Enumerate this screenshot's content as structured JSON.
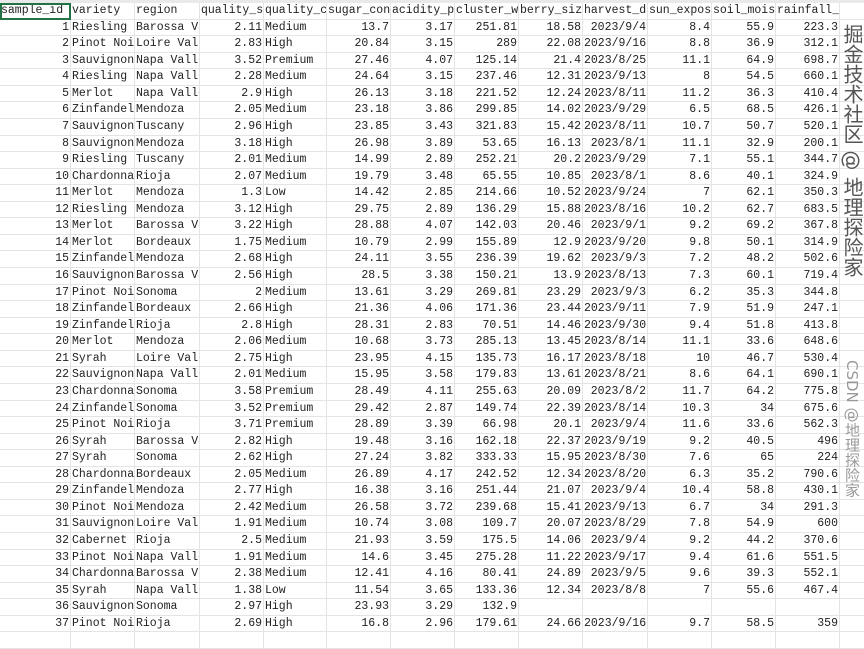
{
  "table": {
    "columns": [
      "sample_id",
      "variety",
      "region",
      "quality_score",
      "quality_category",
      "sugar_content",
      "acidity_ph",
      "cluster_weight",
      "berry_size",
      "harvest_date",
      "sun_exposure",
      "soil_moisture",
      "rainfall_mm"
    ],
    "selected_cell": "A1",
    "rows": [
      [
        "1",
        "Riesling",
        "Barossa Valley",
        "2.11",
        "Medium",
        "13.7",
        "3.17",
        "251.81",
        "18.58",
        "2023/9/4",
        "8.4",
        "55.9",
        "223.3"
      ],
      [
        "2",
        "Pinot Noir",
        "Loire Valley",
        "2.83",
        "High",
        "20.84",
        "3.15",
        "289",
        "22.08",
        "2023/9/16",
        "8.8",
        "36.9",
        "312.1"
      ],
      [
        "3",
        "Sauvignon",
        "Napa Valley",
        "3.52",
        "Premium",
        "27.46",
        "4.07",
        "125.14",
        "21.4",
        "2023/8/25",
        "11.1",
        "64.9",
        "698.7"
      ],
      [
        "4",
        "Riesling",
        "Napa Valley",
        "2.28",
        "Medium",
        "24.64",
        "3.15",
        "237.46",
        "12.31",
        "2023/9/13",
        "8",
        "54.5",
        "660.1"
      ],
      [
        "5",
        "Merlot",
        "Napa Valley",
        "2.9",
        "High",
        "26.13",
        "3.18",
        "221.52",
        "12.24",
        "2023/8/11",
        "11.2",
        "36.3",
        "410.4"
      ],
      [
        "6",
        "Zinfandel",
        "Mendoza",
        "2.05",
        "Medium",
        "23.18",
        "3.86",
        "299.85",
        "14.02",
        "2023/9/29",
        "6.5",
        "68.5",
        "426.1"
      ],
      [
        "7",
        "Sauvignon",
        "Tuscany",
        "2.96",
        "High",
        "23.85",
        "3.43",
        "321.83",
        "15.42",
        "2023/8/11",
        "10.7",
        "50.7",
        "520.1"
      ],
      [
        "8",
        "Sauvignon",
        "Mendoza",
        "3.18",
        "High",
        "26.98",
        "3.89",
        "53.65",
        "16.13",
        "2023/8/1",
        "11.1",
        "32.9",
        "200.1"
      ],
      [
        "9",
        "Riesling",
        "Tuscany",
        "2.01",
        "Medium",
        "14.99",
        "2.89",
        "252.21",
        "20.2",
        "2023/9/29",
        "7.1",
        "55.1",
        "344.7"
      ],
      [
        "10",
        "Chardonnay",
        "Rioja",
        "2.07",
        "Medium",
        "19.79",
        "3.48",
        "65.55",
        "10.85",
        "2023/8/1",
        "8.6",
        "40.1",
        "324.9"
      ],
      [
        "11",
        "Merlot",
        "Mendoza",
        "1.3",
        "Low",
        "14.42",
        "2.85",
        "214.66",
        "10.52",
        "2023/9/24",
        "7",
        "62.1",
        "350.3"
      ],
      [
        "12",
        "Riesling",
        "Mendoza",
        "3.12",
        "High",
        "29.75",
        "2.89",
        "136.29",
        "15.88",
        "2023/8/16",
        "10.2",
        "62.7",
        "683.5"
      ],
      [
        "13",
        "Merlot",
        "Barossa Valley",
        "3.22",
        "High",
        "28.88",
        "4.07",
        "142.03",
        "20.46",
        "2023/9/1",
        "9.2",
        "69.2",
        "367.8"
      ],
      [
        "14",
        "Merlot",
        "Bordeaux",
        "1.75",
        "Medium",
        "10.79",
        "2.99",
        "155.89",
        "12.9",
        "2023/9/20",
        "9.8",
        "50.1",
        "314.9"
      ],
      [
        "15",
        "Zinfandel",
        "Mendoza",
        "2.68",
        "High",
        "24.11",
        "3.55",
        "236.39",
        "19.62",
        "2023/9/3",
        "7.2",
        "48.2",
        "502.6"
      ],
      [
        "16",
        "Sauvignon",
        "Barossa Valley",
        "2.56",
        "High",
        "28.5",
        "3.38",
        "150.21",
        "13.9",
        "2023/8/13",
        "7.3",
        "60.1",
        "719.4"
      ],
      [
        "17",
        "Pinot Noir",
        "Sonoma",
        "2",
        "Medium",
        "13.61",
        "3.29",
        "269.81",
        "23.29",
        "2023/9/3",
        "6.2",
        "35.3",
        "344.8"
      ],
      [
        "18",
        "Zinfandel",
        "Bordeaux",
        "2.66",
        "High",
        "21.36",
        "4.06",
        "171.36",
        "23.44",
        "2023/9/11",
        "7.9",
        "51.9",
        "247.1"
      ],
      [
        "19",
        "Zinfandel",
        "Rioja",
        "2.8",
        "High",
        "28.31",
        "2.83",
        "70.51",
        "14.46",
        "2023/9/30",
        "9.4",
        "51.8",
        "413.8"
      ],
      [
        "20",
        "Merlot",
        "Mendoza",
        "2.06",
        "Medium",
        "10.68",
        "3.73",
        "285.13",
        "13.45",
        "2023/8/14",
        "11.1",
        "33.6",
        "648.6"
      ],
      [
        "21",
        "Syrah",
        "Loire Valley",
        "2.75",
        "High",
        "23.95",
        "4.15",
        "135.73",
        "16.17",
        "2023/8/18",
        "10",
        "46.7",
        "530.4"
      ],
      [
        "22",
        "Sauvignon",
        "Napa Valley",
        "2.01",
        "Medium",
        "15.95",
        "3.58",
        "179.83",
        "13.61",
        "2023/8/21",
        "8.6",
        "64.1",
        "690.1"
      ],
      [
        "23",
        "Chardonnay",
        "Sonoma",
        "3.58",
        "Premium",
        "28.49",
        "4.11",
        "255.63",
        "20.09",
        "2023/8/2",
        "11.7",
        "64.2",
        "775.8"
      ],
      [
        "24",
        "Zinfandel",
        "Sonoma",
        "3.52",
        "Premium",
        "29.42",
        "2.87",
        "149.74",
        "22.39",
        "2023/8/14",
        "10.3",
        "34",
        "675.6"
      ],
      [
        "25",
        "Pinot Noir",
        "Rioja",
        "3.71",
        "Premium",
        "28.89",
        "3.39",
        "66.98",
        "20.1",
        "2023/9/4",
        "11.6",
        "33.6",
        "562.3"
      ],
      [
        "26",
        "Syrah",
        "Barossa Valley",
        "2.82",
        "High",
        "19.48",
        "3.16",
        "162.18",
        "22.37",
        "2023/9/19",
        "9.2",
        "40.5",
        "496"
      ],
      [
        "27",
        "Syrah",
        "Sonoma",
        "2.62",
        "High",
        "27.24",
        "3.82",
        "333.33",
        "15.95",
        "2023/8/30",
        "7.6",
        "65",
        "224"
      ],
      [
        "28",
        "Chardonnay",
        "Bordeaux",
        "2.05",
        "Medium",
        "26.89",
        "4.17",
        "242.52",
        "12.34",
        "2023/8/20",
        "6.3",
        "35.2",
        "790.6"
      ],
      [
        "29",
        "Zinfandel",
        "Mendoza",
        "2.77",
        "High",
        "16.38",
        "3.16",
        "251.44",
        "21.07",
        "2023/9/4",
        "10.4",
        "58.8",
        "430.1"
      ],
      [
        "30",
        "Pinot Noir",
        "Mendoza",
        "2.42",
        "Medium",
        "26.58",
        "3.72",
        "239.68",
        "15.41",
        "2023/9/13",
        "6.7",
        "34",
        "291.3"
      ],
      [
        "31",
        "Sauvignon",
        "Loire Valley",
        "1.91",
        "Medium",
        "10.74",
        "3.08",
        "109.7",
        "20.07",
        "2023/8/29",
        "7.8",
        "54.9",
        "600"
      ],
      [
        "32",
        "Cabernet Sauvignon",
        "Rioja",
        "2.5",
        "Medium",
        "21.93",
        "3.59",
        "175.5",
        "14.06",
        "2023/9/4",
        "9.2",
        "44.2",
        "370.6"
      ],
      [
        "33",
        "Pinot Noir",
        "Napa Valley",
        "1.91",
        "Medium",
        "14.6",
        "3.45",
        "275.28",
        "11.22",
        "2023/9/17",
        "9.4",
        "61.6",
        "551.5"
      ],
      [
        "34",
        "Chardonnay",
        "Barossa Valley",
        "2.38",
        "Medium",
        "12.41",
        "4.16",
        "80.41",
        "24.89",
        "2023/9/5",
        "9.6",
        "39.3",
        "552.1"
      ],
      [
        "35",
        "Syrah",
        "Napa Valley",
        "1.38",
        "Low",
        "11.54",
        "3.65",
        "133.36",
        "12.34",
        "2023/8/8",
        "7",
        "55.6",
        "467.4"
      ],
      [
        "36",
        "Sauvignon",
        "Sonoma",
        "2.97",
        "High",
        "23.93",
        "3.29",
        "132.9",
        "",
        "",
        "",
        "",
        ""
      ],
      [
        "37",
        "Pinot Noir",
        "Rioja",
        "2.69",
        "High",
        "16.8",
        "2.96",
        "179.61",
        "24.66",
        "2023/9/16",
        "9.7",
        "58.5",
        "359"
      ]
    ]
  },
  "watermark": {
    "primary": "掘金技术社区 @ 地理探险家",
    "secondary": "CSDN @地理探险家"
  },
  "colors": {
    "selection": "#217346",
    "gridline": "#e4e4e4"
  }
}
